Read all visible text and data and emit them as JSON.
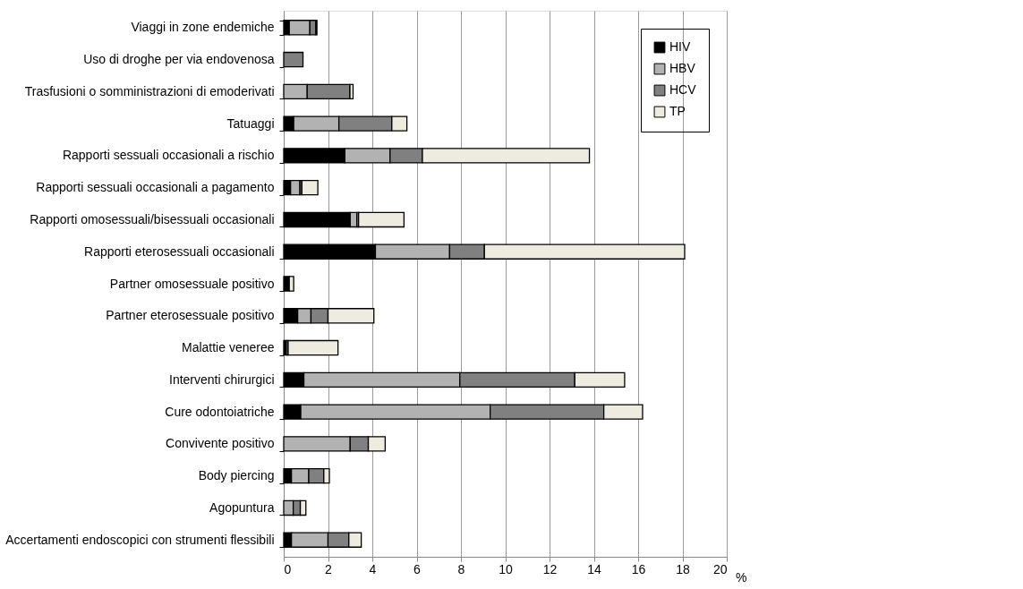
{
  "chart_data": {
    "type": "bar",
    "orientation": "horizontal",
    "stacked": true,
    "categories": [
      "Viaggi in zone endemiche",
      "Uso di droghe per via endovenosa",
      "Trasfusioni o somministrazioni di emoderivati",
      "Tatuaggi",
      "Rapporti sessuali occasionali a rischio",
      "Rapporti sessuali occasionali a pagamento",
      "Rapporti omosessuali/bisessuali occasionali",
      "Rapporti eterosessuali occasionali",
      "Partner omosessuale positivo",
      "Partner eterosessuale positivo",
      "Malattie veneree",
      "Interventi chirurgici",
      "Cure odontoiatriche",
      "Convivente positivo",
      "Body piercing",
      "Agopuntura",
      "Accertamenti endoscopici con strumenti flessibili"
    ],
    "series": [
      {
        "name": "HIV",
        "color": "#000000",
        "values": [
          0.25,
          0,
          0,
          0.45,
          2.76,
          0.31,
          3.0,
          4.14,
          0.25,
          0.63,
          0.12,
          0.91,
          0.77,
          0,
          0.35,
          0,
          0.35
        ]
      },
      {
        "name": "HBV",
        "color": "#b2b2b2",
        "values": [
          0.93,
          0,
          1.06,
          2.04,
          2.04,
          0.42,
          0.3,
          3.35,
          0,
          0.6,
          0.08,
          7.04,
          8.55,
          3.0,
          0.78,
          0.43,
          1.65
        ]
      },
      {
        "name": "HCV",
        "color": "#808080",
        "values": [
          0.27,
          0.87,
          1.93,
          2.39,
          1.46,
          0.09,
          0.08,
          1.57,
          0,
          0.77,
          0,
          5.19,
          5.13,
          0.82,
          0.68,
          0.32,
          0.94
        ]
      },
      {
        "name": "TP",
        "color": "#eeebe0",
        "values": [
          0.05,
          0,
          0.14,
          0.68,
          7.54,
          0.72,
          2.05,
          9.04,
          0.2,
          2.07,
          2.25,
          2.25,
          1.75,
          0.76,
          0.25,
          0.25,
          0.56
        ]
      }
    ],
    "xlabel": "%",
    "xlim": [
      0,
      20
    ],
    "xticks": [
      0,
      2,
      4,
      6,
      8,
      10,
      12,
      14,
      16,
      18,
      20
    ],
    "grid": "x",
    "legend": "top right"
  }
}
